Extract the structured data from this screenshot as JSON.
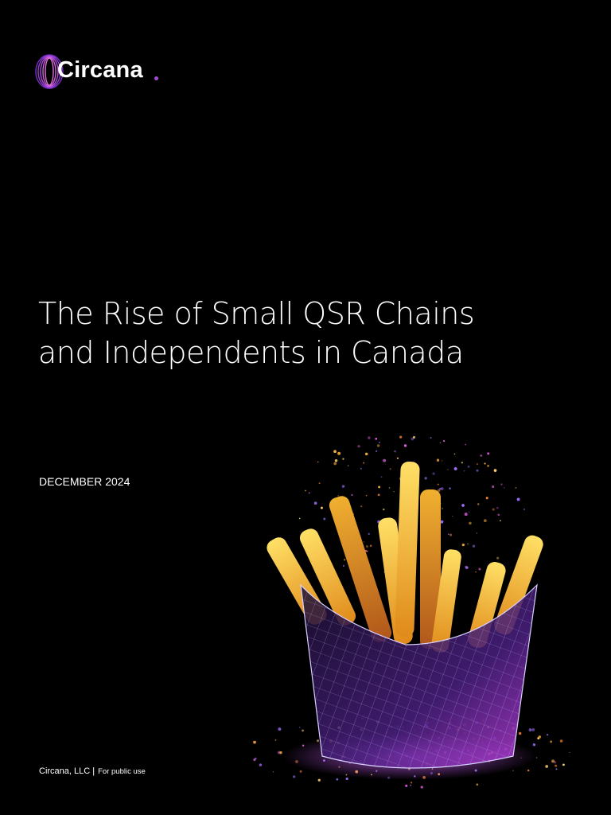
{
  "logo": {
    "text": "Circana"
  },
  "title": "The Rise of Small QSR Chains and Independents in Canada",
  "date": "DECEMBER 2024",
  "footer": {
    "company": "Circana, LLC |",
    "note": "For public use"
  }
}
